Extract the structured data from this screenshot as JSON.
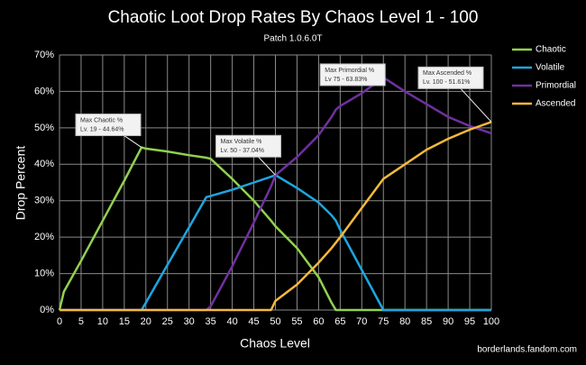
{
  "chart_data": {
    "type": "line",
    "title": "Chaotic Loot Drop Rates By Chaos Level 1 - 100",
    "subtitle": "Patch 1.0.6.0T",
    "x_label": "Chaos Level",
    "y_label": "Drop Percent",
    "source": "borderlands.fandom.com",
    "x": [
      0,
      1,
      5,
      10,
      15,
      19,
      20,
      25,
      30,
      34,
      35,
      40,
      45,
      49,
      50,
      55,
      60,
      63,
      64,
      65,
      70,
      75,
      80,
      85,
      90,
      95,
      100
    ],
    "series": [
      {
        "name": "Chaotic",
        "color": "#92d050",
        "values": [
          0,
          5,
          13.5,
          24.5,
          35.5,
          44.64,
          44.3,
          43.5,
          42.5,
          41.8,
          41.5,
          36,
          30,
          24.5,
          23,
          17,
          9,
          2,
          0,
          0,
          0,
          0,
          0,
          0,
          0,
          0,
          0
        ]
      },
      {
        "name": "Volatile",
        "color": "#1ea5e0",
        "values": [
          0,
          0,
          0,
          0,
          0,
          0,
          2,
          12.4,
          22.7,
          31,
          31.3,
          33,
          35,
          36.6,
          37.04,
          33.5,
          29.5,
          26,
          24.5,
          22,
          11,
          0,
          0,
          0,
          0,
          0,
          0
        ]
      },
      {
        "name": "Primordial",
        "color": "#7030a0",
        "values": [
          0,
          0,
          0,
          0,
          0,
          0,
          0,
          0,
          0,
          0,
          1,
          12,
          24,
          34,
          37,
          42,
          48,
          53,
          55,
          56,
          59.5,
          63.83,
          60,
          56.5,
          53,
          50.5,
          48.5
        ]
      },
      {
        "name": "Ascended",
        "color": "#f6b93b",
        "values": [
          0,
          0,
          0,
          0,
          0,
          0,
          0,
          0,
          0,
          0,
          0,
          0,
          0,
          0,
          2.5,
          7,
          13,
          17,
          18.5,
          20,
          28,
          36,
          40,
          44,
          47,
          49.5,
          51.61
        ]
      }
    ],
    "annotations": [
      {
        "text": [
          "Max Chaotic %",
          "Lv. 19 - 44.64%"
        ],
        "x": 19,
        "y": 44.64
      },
      {
        "text": [
          "Max Volatile %",
          "Lv. 50 - 37.04%"
        ],
        "x": 50,
        "y": 37.04
      },
      {
        "text": [
          "Max Primordial %",
          "Lv 75 - 63.83%"
        ],
        "x": 75,
        "y": 63.83
      },
      {
        "text": [
          "Max Ascended %",
          "Lv. 100 - 51.61%"
        ],
        "x": 100,
        "y": 51.61
      }
    ],
    "xlim": [
      0,
      100
    ],
    "xticks": [
      0,
      5,
      10,
      15,
      20,
      25,
      30,
      35,
      40,
      45,
      50,
      55,
      60,
      65,
      70,
      75,
      80,
      85,
      90,
      95,
      100
    ],
    "ylim": [
      0,
      70
    ],
    "yticks": [
      {
        "value": 0,
        "label": "0%"
      },
      {
        "value": 10,
        "label": "10%"
      },
      {
        "value": 20,
        "label": "20%"
      },
      {
        "value": 30,
        "label": "30%"
      },
      {
        "value": 40,
        "label": "40%"
      },
      {
        "value": 50,
        "label": "50%"
      },
      {
        "value": 60,
        "label": "60%"
      },
      {
        "value": 70,
        "label": "70%"
      }
    ],
    "grid": true,
    "legend": "right"
  }
}
